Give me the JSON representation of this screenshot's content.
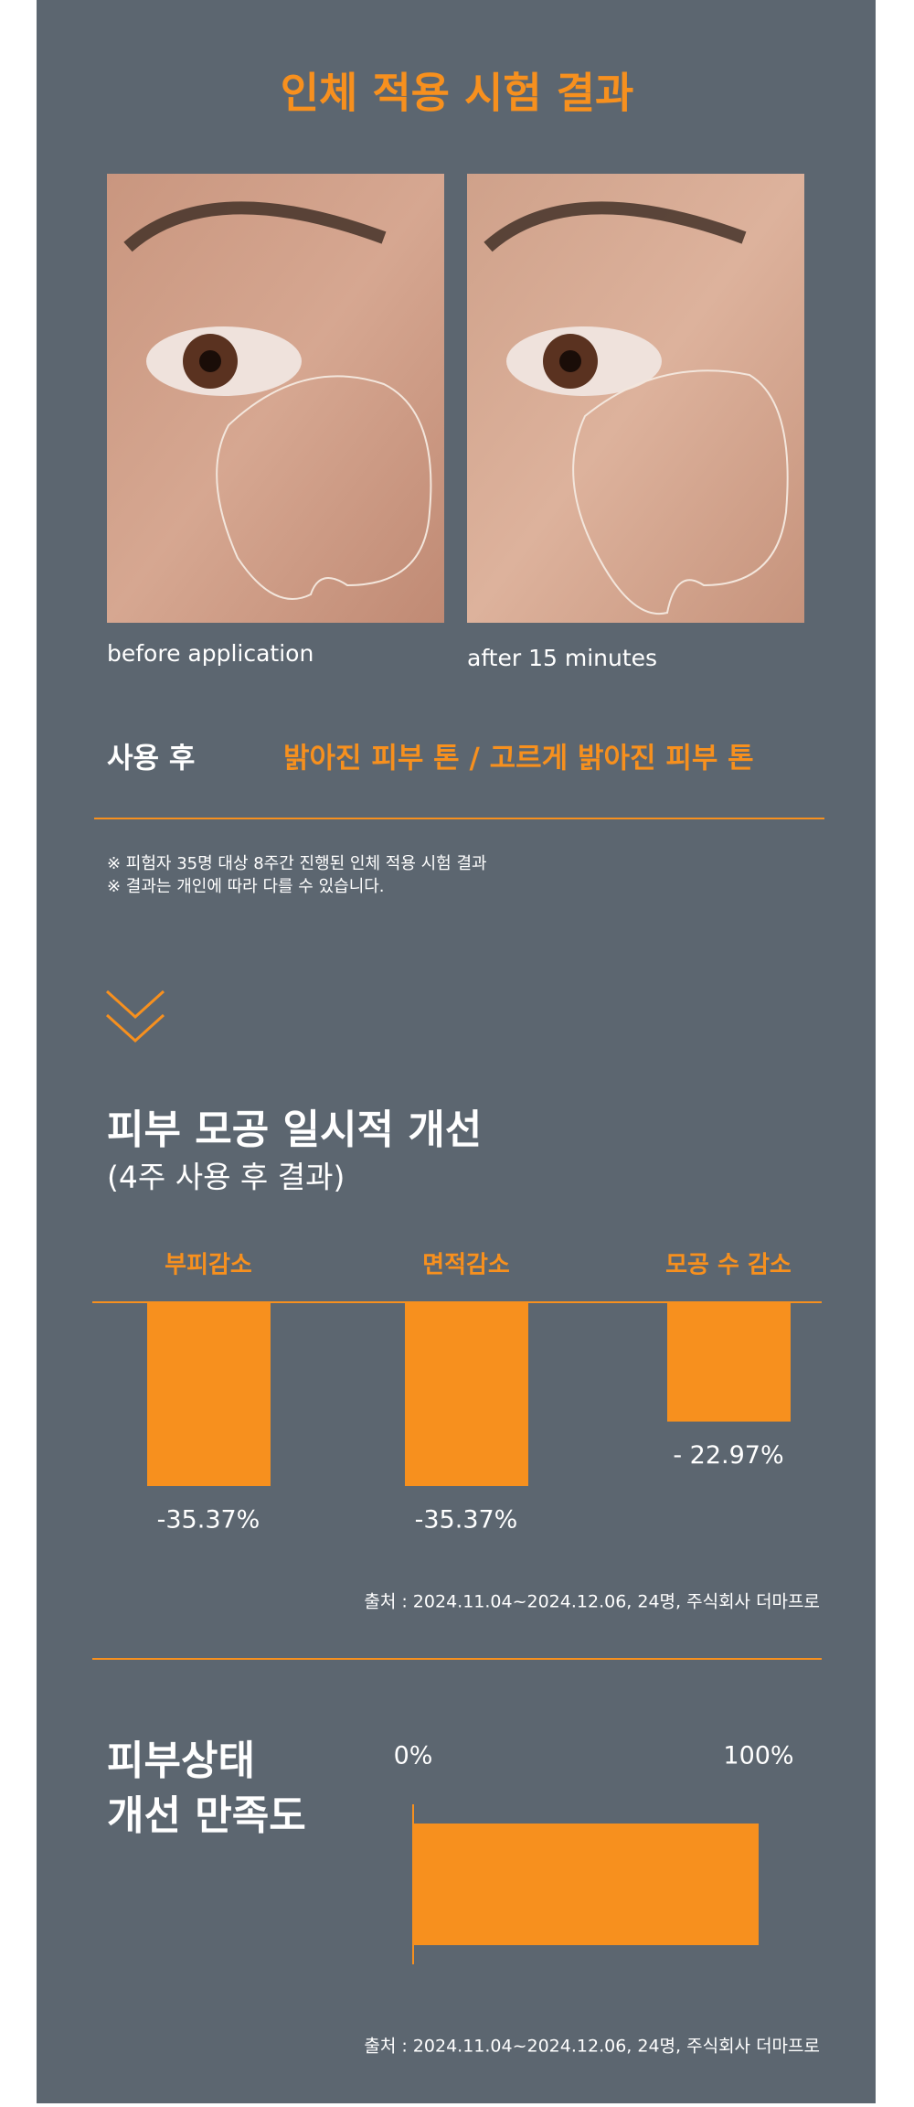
{
  "title": "인체 적용 시험 결과",
  "photos": [
    {
      "caption": "before application"
    },
    {
      "caption": "after 15 minutes"
    }
  ],
  "result": {
    "label": "사용 후",
    "text": "밝아진 피부 톤 / 고르게 밝아진 피부 톤"
  },
  "notes": [
    "※ 피험자 35명 대상 8주간 진행된 인체 적용 시험 결과",
    "※ 결과는 개인에 따라 다를 수 있습니다."
  ],
  "pore_chart": {
    "type": "bar",
    "title": "피부 모공 일시적 개선",
    "subtitle": "(4주 사용 후 결과)",
    "categories": [
      "부피감소",
      "면적감소",
      "모공 수 감소"
    ],
    "values": [
      -35.37,
      -35.37,
      -22.97
    ],
    "value_labels": [
      "-35.37%",
      "-35.37%",
      "- 22.97%"
    ],
    "color": "#f7901e",
    "source": "출처 : 2024.11.04~2024.12.06, 24명, 주식회사 더마프로"
  },
  "satisfaction_chart": {
    "type": "hbar",
    "title_lines": [
      "피부상태",
      "개선 만족도"
    ],
    "values": [
      100
    ],
    "xlim": [
      0,
      100
    ],
    "xticks": [
      {
        "value": 0,
        "label": "0%"
      },
      {
        "value": 100,
        "label": "100%"
      }
    ],
    "color": "#f7901e",
    "source": "출처 : 2024.11.04~2024.12.06, 24명, 주식회사 더마프로"
  }
}
